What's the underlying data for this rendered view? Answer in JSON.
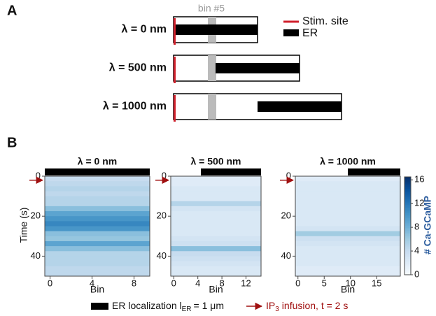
{
  "panel_a": {
    "label": "A",
    "bin_label": "bin #5",
    "legend": {
      "stim": "Stim. site",
      "er": "ER"
    },
    "rows": [
      {
        "label": "λ = 0 nm",
        "lambda_nm": 0
      },
      {
        "label": "λ = 500 nm",
        "lambda_nm": 500
      },
      {
        "label": "λ = 1000 nm",
        "lambda_nm": 1000
      }
    ]
  },
  "panel_b": {
    "label": "B",
    "colorbar": {
      "label": "# Ca-GCaMP",
      "lim": [
        0,
        16.5
      ],
      "ticks": [
        0,
        4,
        8,
        12,
        16
      ]
    },
    "legend": {
      "er_text": "ER localization l",
      "er_sub": "ER",
      "er_rest": "= 1 μm",
      "er_length_um": 1,
      "ip3_text": "IP",
      "ip3_sub": "3",
      "ip3_rest": "infusion, t = 2 s",
      "ip3_time_s": 2
    },
    "heatmaps": [
      {
        "title": "λ = 0 nm",
        "xlabel": "Bin",
        "ylabel": "Time (s)",
        "xlim": [
          -0.5,
          9.5
        ],
        "xticks": [
          0,
          4,
          8
        ],
        "ylim": [
          0,
          50
        ],
        "yticks": [
          0,
          20,
          40
        ],
        "er_bins": [
          -0.5,
          9.5
        ],
        "time_bins": [
          0,
          2.5,
          5,
          7.5,
          10,
          12.5,
          15,
          17.5,
          20,
          22.5,
          25,
          27.5,
          30,
          32.5,
          35,
          37.5,
          40,
          42.5,
          45,
          47.5,
          50
        ],
        "values": [
          4,
          4.5,
          5,
          4.5,
          5,
          5,
          7,
          9,
          10,
          11,
          10,
          7,
          6.5,
          9,
          7,
          5,
          5,
          5,
          4.5,
          4.5
        ]
      },
      {
        "title": "λ = 500 nm",
        "xlabel": "Bin",
        "xlim": [
          -0.5,
          14.5
        ],
        "xticks": [
          0,
          4,
          8,
          12
        ],
        "ylim": [
          0,
          50
        ],
        "yticks": [
          0,
          20,
          40
        ],
        "er_bins": [
          4.5,
          14.5
        ],
        "time_bins": [
          0,
          2.5,
          5,
          7.5,
          10,
          12.5,
          15,
          17.5,
          20,
          22.5,
          25,
          27.5,
          30,
          32.5,
          35,
          37.5,
          40,
          42.5,
          45,
          47.5,
          50
        ],
        "values": [
          2,
          2,
          2.5,
          2.5,
          2.5,
          5,
          3,
          2.5,
          2.5,
          2.5,
          2.5,
          2.5,
          3,
          3.5,
          7,
          4,
          3.5,
          3,
          2.5,
          2.5
        ]
      },
      {
        "title": "λ = 1000 nm",
        "xlabel": "Bin",
        "xlim": [
          -0.5,
          19.5
        ],
        "xticks": [
          0,
          5,
          10,
          15
        ],
        "ylim": [
          0,
          50
        ],
        "yticks": [
          0,
          20,
          40
        ],
        "er_bins": [
          9.5,
          19.5
        ],
        "time_bins": [
          0,
          2.5,
          5,
          7.5,
          10,
          12.5,
          15,
          17.5,
          20,
          22.5,
          25,
          27.5,
          30,
          32.5,
          35,
          37.5,
          40,
          42.5,
          45,
          47.5,
          50
        ],
        "values": [
          2,
          2.5,
          2.5,
          2.5,
          2.5,
          2.5,
          2.5,
          2.5,
          2.5,
          2.5,
          3,
          6,
          3.5,
          3,
          2.5,
          2.5,
          2.5,
          2.5,
          2,
          2
        ]
      }
    ]
  }
}
